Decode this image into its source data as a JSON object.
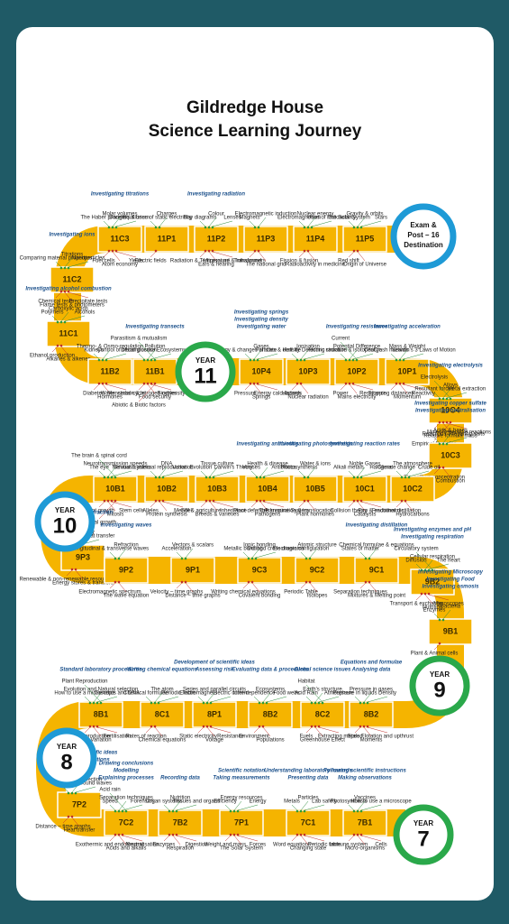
{
  "header": {
    "title": [
      "Gildredge House",
      "Science Learning Journey"
    ]
  },
  "destination": [
    "Exam &",
    "Post – 16",
    "Destination"
  ],
  "years": [
    {
      "label": "YEAR",
      "number": "11"
    },
    {
      "label": "YEAR",
      "number": "10"
    },
    {
      "label": "YEAR",
      "number": "9"
    },
    {
      "label": "YEAR",
      "number": "8"
    },
    {
      "label": "YEAR",
      "number": "7"
    }
  ],
  "units": [
    {
      "code": "11P5",
      "topics": [
        "The Solar System",
        "Gravity & orbits",
        "Stars",
        "Red shift",
        "Origin of Universe"
      ],
      "skills": []
    },
    {
      "code": "11P4",
      "topics": [
        "Electromagnetism",
        "Nuclear energy",
        "Uses of radioactivity",
        "Fission & fusion",
        "Radioactivity in medicine"
      ],
      "skills": []
    },
    {
      "code": "11P3",
      "topics": [
        "Magnets",
        "Electromagnetic induction",
        "Transformers",
        "The national grid"
      ],
      "skills": []
    },
    {
      "code": "11P2",
      "topics": [
        "Ray diagrams",
        "Colour",
        "Lenses",
        "Radiation & Temperature",
        "Ears & hearing",
        "Ultrasound & Infrasound"
      ],
      "skills": [
        "Investigating radiation"
      ]
    },
    {
      "code": "11P1",
      "topics": [
        "Dangers & uses of static electricity",
        "Charges",
        "Electric fields"
      ],
      "skills": []
    },
    {
      "code": "11C3",
      "topics": [
        "The Haber process",
        "Molar volumes",
        "Equilibrium",
        "Fuel cells",
        "Atom economy",
        "Yields"
      ],
      "skills": [
        "Investigating titrations"
      ]
    },
    {
      "code": "11C2",
      "topics": [
        "Comparing material properties",
        "Titrations",
        "Nanoparticles",
        "Chemical tests",
        "Flame tests & photometers",
        "Precipitate tests"
      ],
      "skills": [
        "Investigating ions"
      ]
    },
    {
      "code": "11C1",
      "topics": [
        "Polymers",
        "Carboxylic acids",
        "Alcohols",
        "Ethanol production",
        "Alkanes & alkenes"
      ],
      "skills": [
        "Investigating alcohol combustion"
      ]
    },
    {
      "code": "11B2",
      "topics": [
        "Kidneys",
        "Thermo- & Osmo-regulation",
        "Control of blood glucose",
        "Diabetes",
        "Hormones",
        "Menstrual cycle"
      ],
      "skills": []
    },
    {
      "code": "11B1",
      "topics": [
        "Decomposition",
        "Pollution",
        "Ecosystems",
        "Parasitism & mutualism",
        "Water, carbon & nitrogen cycles",
        "Food security",
        "Biodiversity",
        "Abiotic & Biotic factors"
      ],
      "skills": [
        "Investigating transects"
      ]
    },
    {
      "code": "10P4",
      "topics": [
        "Energy & changes of state",
        "Gases",
        "Particles & density",
        "Pressure",
        "Springs",
        "Energy calculations"
      ],
      "skills": [
        "Investigating water",
        "Investigating density",
        "Investigating springs"
      ]
    },
    {
      "code": "10P3",
      "topics": [
        "Half life",
        "Ionisation",
        "Detecting radiation",
        "Hazards",
        "Nuclear radiation"
      ],
      "skills": []
    },
    {
      "code": "10P2",
      "topics": [
        "Atomic structure & isotopes",
        "Potential Difference",
        "Charge",
        "Current",
        "Power",
        "Mains electricity",
        "Resistance"
      ],
      "skills": [
        "Investigating resistance"
      ]
    },
    {
      "code": "10P1",
      "topics": [
        "Crash hazards",
        "Mass & Weight",
        "Newton's 3 Laws of Motion",
        "Stopping distances",
        "Momentum",
        "Reactivity"
      ],
      "skills": [
        "Investigating acceleration"
      ]
    },
    {
      "code": "10C4",
      "topics": [
        "Resultant forces",
        "Alloys",
        "Metal extraction",
        "Electrolysis",
        "Moles",
        "Relative formula mass",
        "Reversible reactions",
        "Empirical formulae"
      ],
      "skills": [
        "Investigating electrolysis"
      ]
    },
    {
      "code": "10C3",
      "topics": [
        "Reactions",
        "Acids & bases",
        "Preparing salts",
        "Strength vs concentration",
        "Combustion"
      ],
      "skills": [
        "Investigating neutralisation",
        "Investigating copper sulfate"
      ]
    },
    {
      "code": "10C2",
      "topics": [
        "Climate change",
        "The atmosphere",
        "Crude oil",
        "Fractional distillation",
        "Hydrocarbons"
      ],
      "skills": []
    },
    {
      "code": "10C1",
      "topics": [
        "Alkali metals",
        "Noble Gases",
        "Halogens",
        "Collision theory",
        "Catalysts",
        "Exo & endothermic"
      ],
      "skills": [
        "Investigating reaction rates"
      ]
    },
    {
      "code": "10B5",
      "topics": [
        "Photosynthesis",
        "Water & ions",
        "Transpiration & translocation",
        "Plant hormones"
      ],
      "skills": [
        "Investigating photosynthesis"
      ]
    },
    {
      "code": "10B4",
      "topics": [
        "Viruses",
        "Health & disease",
        "Antibiotics",
        "Plant defences",
        "Pathogens",
        "The Immune System"
      ],
      "skills": [
        "Investigating antibiotics"
      ]
    },
    {
      "code": "10B3",
      "topics": [
        "Evolution",
        "Tissue culture",
        "Darwin's Theory",
        "GM & agriculture",
        "Breeds & varieties",
        "Inheritance"
      ],
      "skills": []
    },
    {
      "code": "10B2",
      "topics": [
        "Sexual & asexual reproduction",
        "DNA",
        "Variation",
        "Alleles",
        "Protein synthesis",
        "Mendel"
      ],
      "skills": []
    },
    {
      "code": "10B1",
      "topics": [
        "The eye",
        "Neurotransmission speeds",
        "Nervous system",
        "The brain & spinal cord",
        "Plant growth",
        "Mitosis",
        "Stem cells",
        "Animal growth"
      ],
      "skills": []
    },
    {
      "code": "9P3",
      "topics": [
        "Electricity supply",
        "Efficiency",
        "Heat transfer",
        "Renewable & non-renewable resources",
        "Energy stores & transfers"
      ],
      "skills": [
        "Investigating refraction"
      ]
    },
    {
      "code": "9P2",
      "topics": [
        "Longitudinal & transverse waves",
        "Refraction",
        "Electromagnetic spectrum",
        "The wave equation"
      ],
      "skills": [
        "Investigating waves"
      ]
    },
    {
      "code": "9P1",
      "topics": [
        "Acceleration",
        "Vectors & scalars",
        "Velocity – time graphs",
        "Distance – time graphs"
      ],
      "skills": []
    },
    {
      "code": "9C3",
      "topics": [
        "Metallic bonding",
        "Ionic bonding",
        "Dot and cross diagrams",
        "Writing chemical equations",
        "Covalent bonding"
      ],
      "skills": []
    },
    {
      "code": "9C2",
      "topics": [
        "Electronic configuration",
        "Atomic structure",
        "Periodic Table",
        "Isotopes"
      ],
      "skills": []
    },
    {
      "code": "9C1",
      "topics": [
        "States of matter",
        "Chemical formulae & equations",
        "Separation techniques",
        "Mixtures & Melting point"
      ],
      "skills": [
        "Investigating distillation"
      ]
    },
    {
      "code": "9B2",
      "topics": [
        "Diffusion",
        "Cellular respiration",
        "The heart",
        "Circulatory system",
        "Transport & exchange",
        "Nutrition",
        "Microscopes"
      ],
      "skills": [
        "Investigating respiration",
        "Investigating enzymes and pH"
      ]
    },
    {
      "code": "9B1",
      "topics": [
        "Enzymes",
        "Bacteria",
        "Plant & Animal cells"
      ],
      "skills": [
        "Investigating osmosis",
        "Investigating Food",
        "Investigating Microscopy"
      ]
    },
    {
      "code": "8B2",
      "topics": [
        "Pressure in liquids",
        "Pressure in gases",
        "Density",
        "Speed",
        "Moments",
        "Flotation and upthrust"
      ],
      "skills": [
        "Analysing data",
        "Equations and formulae"
      ]
    },
    {
      "code": "8C2",
      "topics": [
        "Acid Rain",
        "Earth's structure",
        "Atmosphere",
        "Habitat",
        "Fuels",
        "Greenhouse Effect",
        "Extracting metals"
      ],
      "skills": [
        "Global science issues"
      ]
    },
    {
      "code": "8B2",
      "topics": [
        "Inter-dependence",
        "Ecosystems",
        "Food webs",
        "Environment",
        "Populations"
      ],
      "skills": [
        "Evaluating data & procedures"
      ]
    },
    {
      "code": "8P1",
      "topics": [
        "Electromagnets",
        "Series and parallel circuits",
        "Electric current",
        "Static electricity",
        "Voltage",
        "Resistance"
      ],
      "skills": [
        "Assessing risk",
        "Development of scientific ideas"
      ]
    },
    {
      "code": "8C1",
      "topics": [
        "Chemical formulae",
        "The atom",
        "Periodic Table",
        "Rates of reaction",
        "Chemical equations"
      ],
      "skills": [
        "Writing chemical equations"
      ]
    },
    {
      "code": "8B1",
      "topics": [
        "How to use a microscope",
        "Evolution and Natural selection",
        "Genetics and DNA",
        "Plant Reproduction",
        "Human Reproduction",
        "Variation",
        "Fertilisation"
      ],
      "skills": [
        "Standard laboratory procedures"
      ]
    },
    {
      "code": "7P2",
      "topics": [
        "Colour",
        "Light and reflection",
        "Sound waves",
        "Distance – time graphs",
        "Heat transfer"
      ],
      "skills": [
        "Planning investigations",
        "Application of scientific ideas"
      ]
    },
    {
      "code": "7C2",
      "topics": [
        "Speed",
        "Separation techniques",
        "Forensics",
        "Acid rain",
        "Exothermic and endothermic",
        "Acids and alkalis",
        "Neutralisation"
      ],
      "skills": [
        "Explaining processes",
        "Modelling",
        "Drawing conclusions"
      ]
    },
    {
      "code": "7B2",
      "topics": [
        "Organ systems",
        "Nutrition",
        "Tissues and organs",
        "Enzymes",
        "Respiration",
        "Digestion"
      ],
      "skills": [
        "Recording data"
      ]
    },
    {
      "code": "7P1",
      "topics": [
        "Efficiency",
        "Energy resources",
        "Energy",
        "Weight and mass",
        "The Solar System",
        "Forces"
      ],
      "skills": [
        "Taking measurements",
        "Scientific notation"
      ]
    },
    {
      "code": "7C1",
      "topics": [
        "Metals",
        "Particles",
        "Lab safety",
        "Word equations",
        "Changing state",
        "Periodic table"
      ],
      "skills": [
        "Presenting data",
        "Understanding laboratory hazards"
      ]
    },
    {
      "code": "7B1",
      "topics": [
        "Photosynthesis",
        "Vaccines",
        "How to use a microscope",
        "Immune system",
        "Micro-organisms",
        "Cells"
      ],
      "skills": [
        "Making observations",
        "Following scientific instructions"
      ]
    }
  ]
}
